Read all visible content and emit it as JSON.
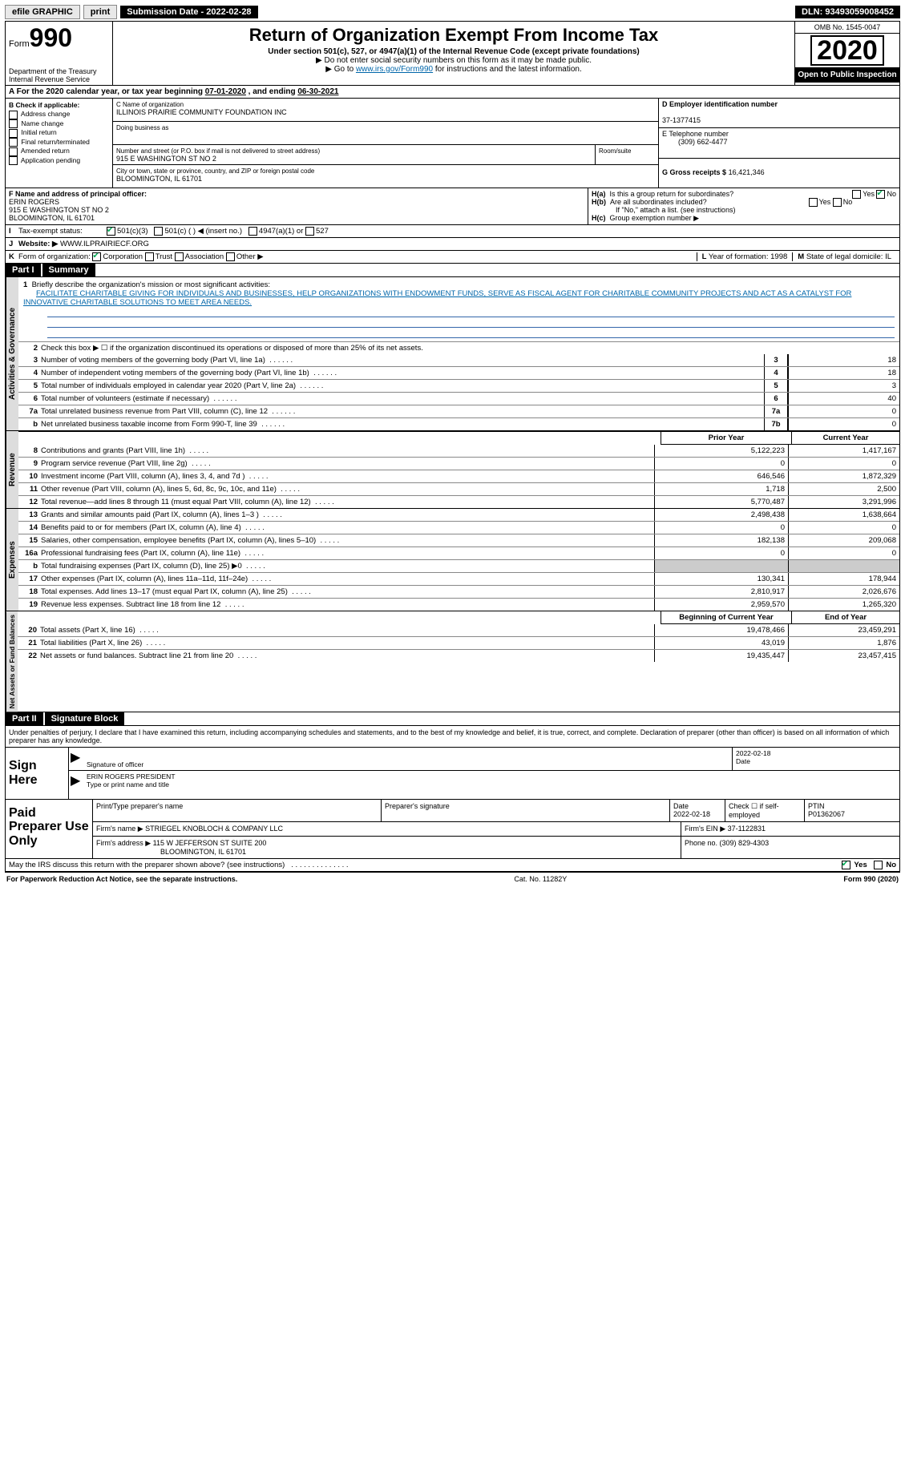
{
  "topbar": {
    "efile": "efile GRAPHIC",
    "print": "print",
    "submission_label": "Submission Date - ",
    "submission_date": "2022-02-28",
    "dln_label": "DLN: ",
    "dln": "93493059008452"
  },
  "header": {
    "form_prefix": "Form",
    "form_no": "990",
    "dept": "Department of the Treasury\nInternal Revenue Service",
    "title": "Return of Organization Exempt From Income Tax",
    "sub1": "Under section 501(c), 527, or 4947(a)(1) of the Internal Revenue Code (except private foundations)",
    "sub2": "▶ Do not enter social security numbers on this form as it may be made public.",
    "sub3_a": "▶ Go to ",
    "sub3_link": "www.irs.gov/Form990",
    "sub3_b": " for instructions and the latest information.",
    "omb": "OMB No. 1545-0047",
    "year": "2020",
    "open": "Open to Public Inspection"
  },
  "taxyear": {
    "line_a": "A",
    "text_a": "For the 2020 calendar year, or tax year beginning ",
    "begin": "07-01-2020",
    "text_b": " , and ending ",
    "end": "06-30-2021"
  },
  "blockB": {
    "title": "B Check if applicable:",
    "items": [
      "Address change",
      "Name change",
      "Initial return",
      "Final return/terminated",
      "Amended return",
      "Application pending"
    ]
  },
  "blockC": {
    "name_label": "C Name of organization",
    "name": "ILLINOIS PRAIRIE COMMUNITY FOUNDATION INC",
    "dba_label": "Doing business as",
    "addr_label": "Number and street (or P.O. box if mail is not delivered to street address)",
    "room_label": "Room/suite",
    "addr": "915 E WASHINGTON ST NO 2",
    "city_label": "City or town, state or province, country, and ZIP or foreign postal code",
    "city": "BLOOMINGTON, IL  61701"
  },
  "blockD": {
    "label": "D Employer identification number",
    "ein": "37-1377415"
  },
  "blockE": {
    "label": "E Telephone number",
    "phone": "(309) 662-4477"
  },
  "blockG": {
    "label": "G Gross receipts $",
    "value": "16,421,346"
  },
  "blockF": {
    "label": "F Name and address of principal officer:",
    "name": "ERIN ROGERS",
    "addr1": "915 E WASHINGTON ST NO 2",
    "addr2": "BLOOMINGTON, IL  61701"
  },
  "blockH": {
    "a_label": "H(a)",
    "a_text": "Is this a group return for subordinates?",
    "b_label": "H(b)",
    "b_text": "Are all subordinates included?",
    "note": "If \"No,\" attach a list. (see instructions)",
    "c_label": "H(c)",
    "c_text": "Group exemption number ▶",
    "yes": "Yes",
    "no": "No"
  },
  "blockI": {
    "label": "I",
    "text": "Tax-exempt status:",
    "opt1": "501(c)(3)",
    "opt2": "501(c) (   ) ◀ (insert no.)",
    "opt3": "4947(a)(1) or",
    "opt4": "527"
  },
  "blockJ": {
    "label": "J",
    "text": "Website: ▶",
    "url": "WWW.ILPRAIRIECF.ORG"
  },
  "blockK": {
    "label": "K",
    "text": "Form of organization:",
    "opts": [
      "Corporation",
      "Trust",
      "Association",
      "Other ▶"
    ]
  },
  "blockL": {
    "label": "L",
    "text": "Year of formation: ",
    "val": "1998"
  },
  "blockM": {
    "label": "M",
    "text": "State of legal domicile: ",
    "val": "IL"
  },
  "part1": {
    "label": "Part I",
    "title": "Summary"
  },
  "gov": {
    "tab": "Activities & Governance",
    "l1": "Briefly describe the organization's mission or most significant activities:",
    "mission": "FACILITATE CHARITABLE GIVING FOR INDIVIDUALS AND BUSINESSES, HELP ORGANIZATIONS WITH ENDOWMENT FUNDS, SERVE AS FISCAL AGENT FOR CHARITABLE COMMUNITY PROJECTS AND ACT AS A CATALYST FOR INNOVATIVE CHARITABLE SOLUTIONS TO MEET AREA NEEDS.",
    "l2": "Check this box ▶ ☐  if the organization discontinued its operations or disposed of more than 25% of its net assets.",
    "lines": [
      {
        "n": "3",
        "d": "Number of voting members of the governing body (Part VI, line 1a)",
        "box": "3",
        "v": "18"
      },
      {
        "n": "4",
        "d": "Number of independent voting members of the governing body (Part VI, line 1b)",
        "box": "4",
        "v": "18"
      },
      {
        "n": "5",
        "d": "Total number of individuals employed in calendar year 2020 (Part V, line 2a)",
        "box": "5",
        "v": "3"
      },
      {
        "n": "6",
        "d": "Total number of volunteers (estimate if necessary)",
        "box": "6",
        "v": "40"
      },
      {
        "n": "7a",
        "d": "Total unrelated business revenue from Part VIII, column (C), line 12",
        "box": "7a",
        "v": "0"
      },
      {
        "n": "b",
        "d": "Net unrelated business taxable income from Form 990-T, line 39",
        "box": "7b",
        "v": "0"
      }
    ]
  },
  "rev": {
    "tab": "Revenue",
    "hdr_prior": "Prior Year",
    "hdr_curr": "Current Year",
    "lines": [
      {
        "n": "8",
        "d": "Contributions and grants (Part VIII, line 1h)",
        "p": "5,122,223",
        "c": "1,417,167"
      },
      {
        "n": "9",
        "d": "Program service revenue (Part VIII, line 2g)",
        "p": "0",
        "c": "0"
      },
      {
        "n": "10",
        "d": "Investment income (Part VIII, column (A), lines 3, 4, and 7d )",
        "p": "646,546",
        "c": "1,872,329"
      },
      {
        "n": "11",
        "d": "Other revenue (Part VIII, column (A), lines 5, 6d, 8c, 9c, 10c, and 11e)",
        "p": "1,718",
        "c": "2,500"
      },
      {
        "n": "12",
        "d": "Total revenue—add lines 8 through 11 (must equal Part VIII, column (A), line 12)",
        "p": "5,770,487",
        "c": "3,291,996"
      }
    ]
  },
  "exp": {
    "tab": "Expenses",
    "lines": [
      {
        "n": "13",
        "d": "Grants and similar amounts paid (Part IX, column (A), lines 1–3 )",
        "p": "2,498,438",
        "c": "1,638,664"
      },
      {
        "n": "14",
        "d": "Benefits paid to or for members (Part IX, column (A), line 4)",
        "p": "0",
        "c": "0"
      },
      {
        "n": "15",
        "d": "Salaries, other compensation, employee benefits (Part IX, column (A), lines 5–10)",
        "p": "182,138",
        "c": "209,068"
      },
      {
        "n": "16a",
        "d": "Professional fundraising fees (Part IX, column (A), line 11e)",
        "p": "0",
        "c": "0"
      },
      {
        "n": "b",
        "d": "Total fundraising expenses (Part IX, column (D), line 25) ▶0",
        "p": "",
        "c": "",
        "shade": true
      },
      {
        "n": "17",
        "d": "Other expenses (Part IX, column (A), lines 11a–11d, 11f–24e)",
        "p": "130,341",
        "c": "178,944"
      },
      {
        "n": "18",
        "d": "Total expenses. Add lines 13–17 (must equal Part IX, column (A), line 25)",
        "p": "2,810,917",
        "c": "2,026,676"
      },
      {
        "n": "19",
        "d": "Revenue less expenses. Subtract line 18 from line 12",
        "p": "2,959,570",
        "c": "1,265,320"
      }
    ]
  },
  "net": {
    "tab": "Net Assets or Fund Balances",
    "hdr_begin": "Beginning of Current Year",
    "hdr_end": "End of Year",
    "lines": [
      {
        "n": "20",
        "d": "Total assets (Part X, line 16)",
        "p": "19,478,466",
        "c": "23,459,291"
      },
      {
        "n": "21",
        "d": "Total liabilities (Part X, line 26)",
        "p": "43,019",
        "c": "1,876"
      },
      {
        "n": "22",
        "d": "Net assets or fund balances. Subtract line 21 from line 20",
        "p": "19,435,447",
        "c": "23,457,415"
      }
    ]
  },
  "part2": {
    "label": "Part II",
    "title": "Signature Block",
    "penalty": "Under penalties of perjury, I declare that I have examined this return, including accompanying schedules and statements, and to the best of my knowledge and belief, it is true, correct, and complete. Declaration of preparer (other than officer) is based on all information of which preparer has any knowledge."
  },
  "sign": {
    "label": "Sign Here",
    "sig_officer": "Signature of officer",
    "date_label": "Date",
    "date": "2022-02-18",
    "name": "ERIN ROGERS  PRESIDENT",
    "type_label": "Type or print name and title"
  },
  "prep": {
    "label": "Paid Preparer Use Only",
    "r1": {
      "c1_label": "Print/Type preparer's name",
      "c2_label": "Preparer's signature",
      "c3_label": "Date",
      "c3_val": "2022-02-18",
      "c4_label": "Check ☐ if self-employed",
      "c5_label": "PTIN",
      "c5_val": "P01362067"
    },
    "r2": {
      "c1_label": "Firm's name    ▶",
      "c1_val": "STRIEGEL KNOBLOCH & COMPANY LLC",
      "c2_label": "Firm's EIN ▶",
      "c2_val": "37-1122831"
    },
    "r3": {
      "c1_label": "Firm's address ▶",
      "c1_val": "115 W JEFFERSON ST SUITE 200",
      "c1_val2": "BLOOMINGTON, IL  61701",
      "c2_label": "Phone no. ",
      "c2_val": "(309) 829-4303"
    }
  },
  "may": {
    "text": "May the IRS discuss this return with the preparer shown above? (see instructions)",
    "yes": "Yes",
    "no": "No"
  },
  "footer": {
    "l": "For Paperwork Reduction Act Notice, see the separate instructions.",
    "m": "Cat. No. 11282Y",
    "r": "Form 990 (2020)"
  }
}
